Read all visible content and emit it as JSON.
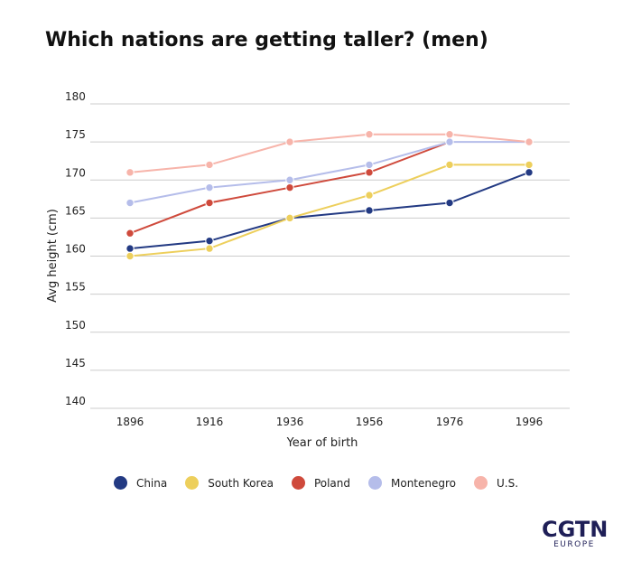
{
  "chart_data": {
    "type": "line",
    "title": "Which nations are getting taller? (men)",
    "xlabel": "Year of birth",
    "ylabel": "Avg height (cm)",
    "x": [
      1896,
      1916,
      1936,
      1956,
      1976,
      1996
    ],
    "y_ticks": [
      140,
      145,
      150,
      155,
      160,
      165,
      170,
      175,
      180
    ],
    "ylim": [
      140,
      180
    ],
    "grid": true,
    "legend_position": "bottom",
    "series": [
      {
        "name": "China",
        "color": "#233a83",
        "values": [
          161,
          162,
          165,
          166,
          167,
          171
        ]
      },
      {
        "name": "South Korea",
        "color": "#edcf5c",
        "values": [
          160,
          161,
          165,
          168,
          172,
          172
        ]
      },
      {
        "name": "Poland",
        "color": "#cf4a3c",
        "values": [
          163,
          167,
          169,
          171,
          175,
          null
        ]
      },
      {
        "name": "Montenegro",
        "color": "#b5bdea",
        "values": [
          167,
          169,
          170,
          172,
          175,
          175
        ]
      },
      {
        "name": "U.S.",
        "color": "#f7b4aa",
        "values": [
          171,
          172,
          175,
          176,
          176,
          175
        ]
      }
    ]
  },
  "branding": {
    "logo_main": "CGTN",
    "logo_sub": "EUROPE"
  }
}
